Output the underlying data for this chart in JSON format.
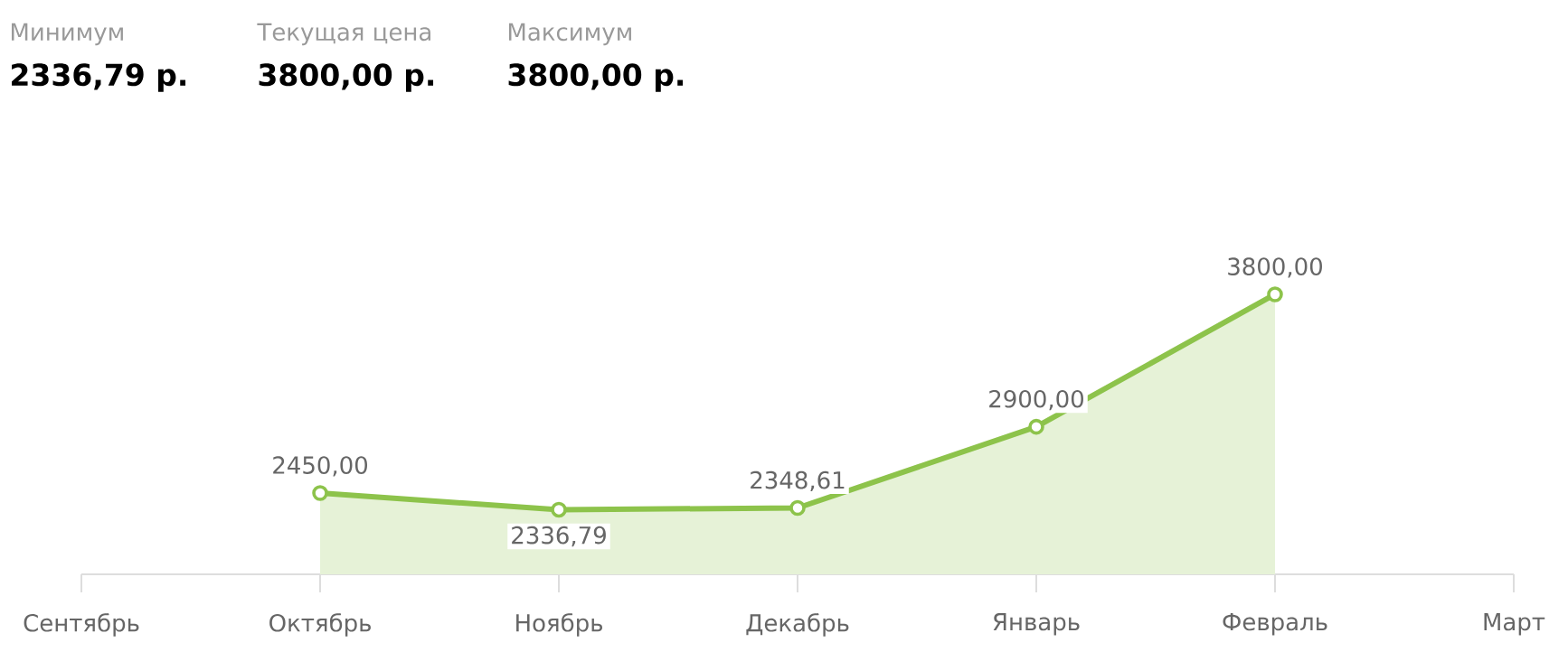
{
  "chart_data": {
    "type": "area",
    "categories": [
      "Сентябрь",
      "Октябрь",
      "Ноябрь",
      "Декабрь",
      "Январь",
      "Февраль",
      "Март"
    ],
    "values": [
      null,
      2450,
      2336.79,
      2348.61,
      2900,
      3800,
      null
    ],
    "value_labels": [
      null,
      "2450,00",
      "2336,79",
      "2348,61",
      "2900,00",
      "3800,00",
      null
    ],
    "color": "#8dc34b",
    "tick_labels": "x",
    "marker": "circle",
    "annotations": [
      "Минимум",
      "2336,79 р.",
      "Текущая цена",
      "3800,00 р.",
      "Максимум",
      "3800,00 р."
    ]
  }
}
